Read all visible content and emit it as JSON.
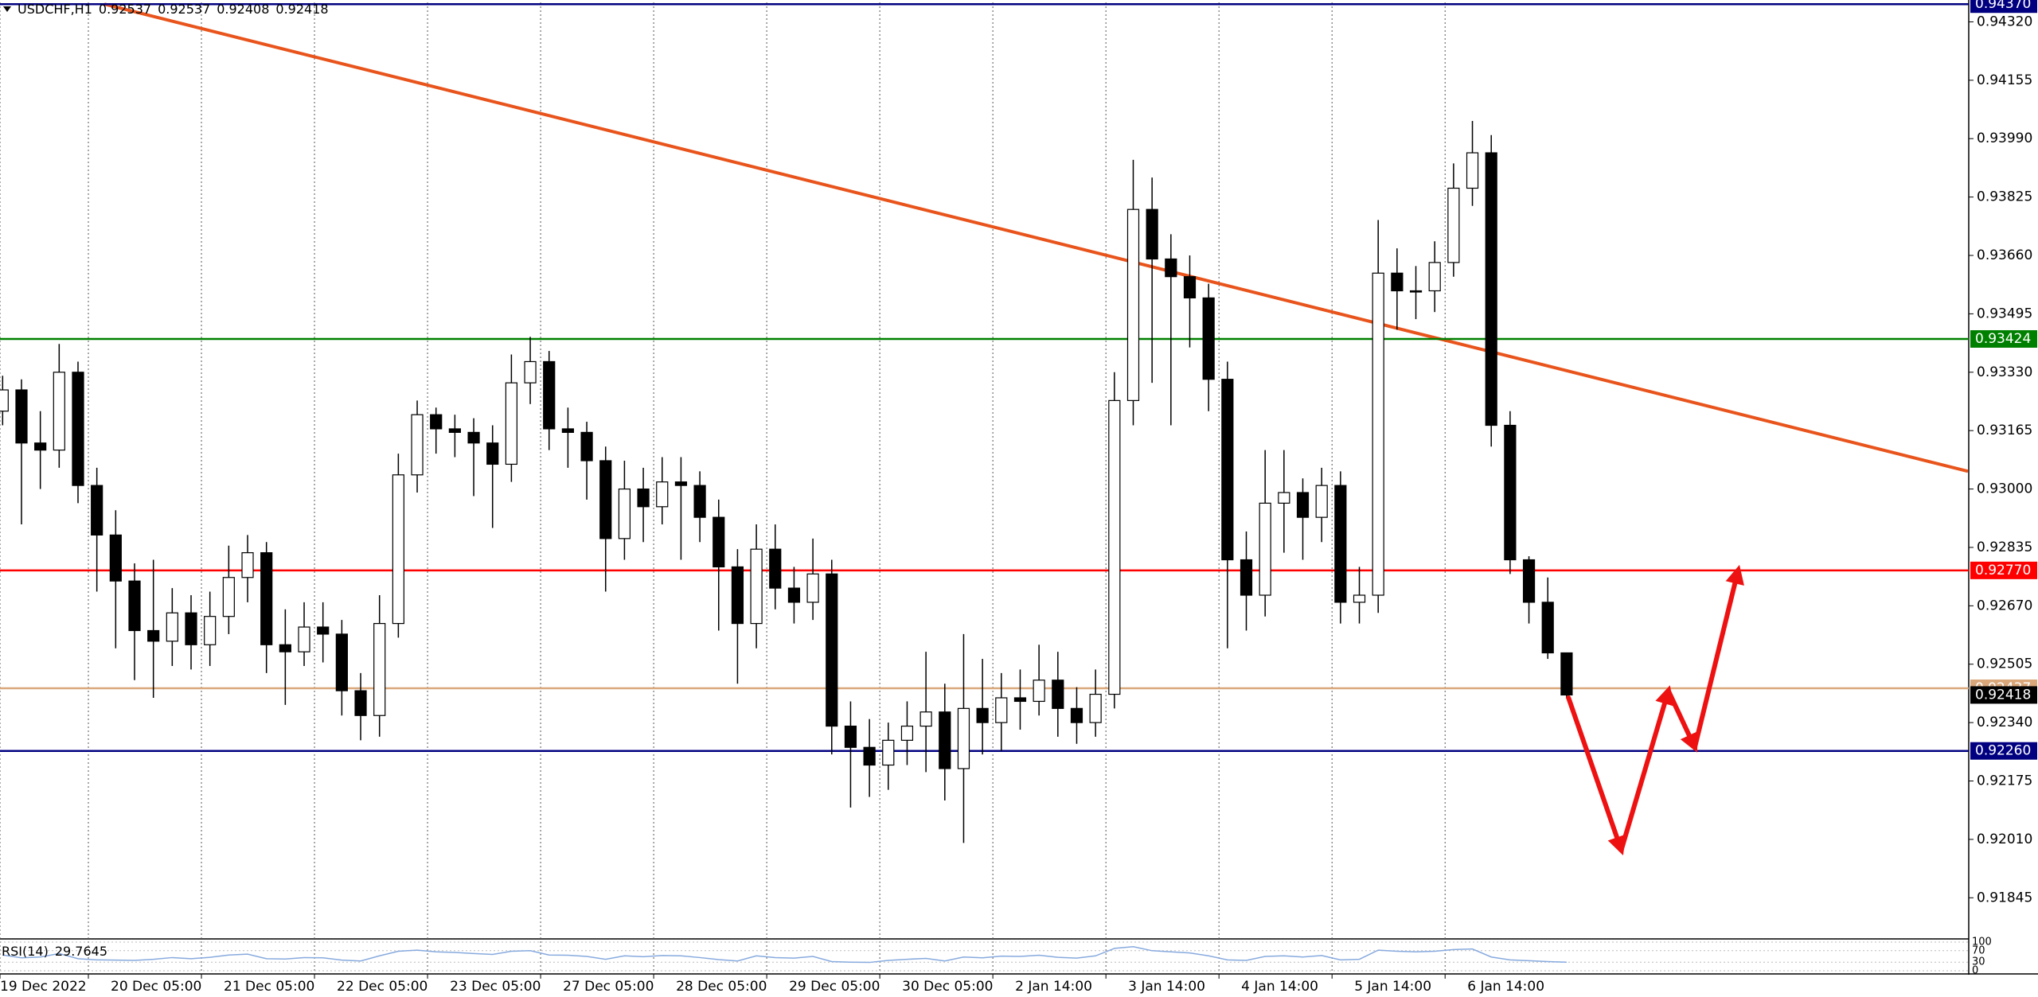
{
  "chart_data": {
    "type": "candlestick",
    "symbol": "USDCHF,H1",
    "open": [
      0.9322,
      0.9328,
      0.9313,
      0.9311,
      0.9333,
      0.9301,
      0.9287,
      0.9274,
      0.926,
      0.9257,
      0.9265,
      0.9256,
      0.9264,
      0.9275,
      0.9282,
      0.9256,
      0.9254,
      0.9261,
      0.9259,
      0.9243,
      0.9236,
      0.9262,
      0.9304,
      0.9321,
      0.9317,
      0.9316,
      0.9313,
      0.9307,
      0.933,
      0.9336,
      0.9317,
      0.9316,
      0.9308,
      0.9286,
      0.93,
      0.9295,
      0.9302,
      0.9301,
      0.9292,
      0.9278,
      0.9262,
      0.9283,
      0.9272,
      0.9268,
      0.9276,
      0.9233,
      0.9227,
      0.9222,
      0.9229,
      0.9233,
      0.9237,
      0.9221,
      0.9238,
      0.9234,
      0.9241,
      0.924,
      0.9246,
      0.9238,
      0.9234,
      0.9242,
      0.9325,
      0.9379,
      0.9365,
      0.936,
      0.9354,
      0.9331,
      0.928,
      0.927,
      0.9296,
      0.9299,
      0.9292,
      0.9301,
      0.9268,
      0.927,
      0.9361,
      0.9356,
      0.9356,
      0.9364,
      0.9385,
      0.9395,
      0.9318,
      0.928,
      0.9268,
      0.92537
    ],
    "high": [
      0.9332,
      0.9331,
      0.9322,
      0.9341,
      0.9336,
      0.9306,
      0.9294,
      0.9279,
      0.928,
      0.9272,
      0.927,
      0.9271,
      0.9284,
      0.9287,
      0.9285,
      0.9266,
      0.9268,
      0.9268,
      0.9263,
      0.9248,
      0.927,
      0.931,
      0.9325,
      0.9323,
      0.9321,
      0.932,
      0.9318,
      0.9338,
      0.9343,
      0.9339,
      0.9323,
      0.9319,
      0.9312,
      0.9308,
      0.9306,
      0.9309,
      0.9309,
      0.9305,
      0.9297,
      0.9283,
      0.929,
      0.929,
      0.9278,
      0.9286,
      0.928,
      0.924,
      0.9235,
      0.9234,
      0.924,
      0.9254,
      0.9245,
      0.9259,
      0.9252,
      0.9248,
      0.9249,
      0.9256,
      0.9254,
      0.9244,
      0.9249,
      0.9333,
      0.9393,
      0.9388,
      0.9372,
      0.9366,
      0.9358,
      0.9336,
      0.9288,
      0.9311,
      0.9311,
      0.9303,
      0.9306,
      0.9305,
      0.9278,
      0.9376,
      0.9368,
      0.9363,
      0.937,
      0.9392,
      0.9404,
      0.94,
      0.9322,
      0.9281,
      0.9275,
      0.92537
    ],
    "low": [
      0.9318,
      0.929,
      0.93,
      0.9306,
      0.9296,
      0.9271,
      0.9255,
      0.9246,
      0.9241,
      0.925,
      0.9249,
      0.925,
      0.9259,
      0.9268,
      0.9248,
      0.9239,
      0.925,
      0.9251,
      0.9236,
      0.9229,
      0.923,
      0.9258,
      0.9299,
      0.931,
      0.9309,
      0.9298,
      0.9289,
      0.9302,
      0.9324,
      0.9311,
      0.9306,
      0.9297,
      0.9271,
      0.928,
      0.9285,
      0.929,
      0.928,
      0.9285,
      0.926,
      0.9245,
      0.9255,
      0.9266,
      0.9262,
      0.9263,
      0.9225,
      0.921,
      0.9213,
      0.9215,
      0.9222,
      0.922,
      0.9212,
      0.92,
      0.9225,
      0.9226,
      0.9232,
      0.9236,
      0.923,
      0.9228,
      0.923,
      0.9238,
      0.9318,
      0.933,
      0.9318,
      0.934,
      0.9322,
      0.9255,
      0.926,
      0.9264,
      0.9282,
      0.928,
      0.9285,
      0.9262,
      0.9262,
      0.9265,
      0.9345,
      0.9348,
      0.935,
      0.936,
      0.938,
      0.9312,
      0.9276,
      0.9262,
      0.9252,
      0.92408
    ],
    "close": [
      0.9328,
      0.9313,
      0.9311,
      0.9333,
      0.9301,
      0.9287,
      0.9274,
      0.926,
      0.9257,
      0.9265,
      0.9256,
      0.9264,
      0.9275,
      0.9282,
      0.9256,
      0.9254,
      0.9261,
      0.9259,
      0.9243,
      0.9236,
      0.9262,
      0.9304,
      0.9321,
      0.9317,
      0.9316,
      0.9313,
      0.9307,
      0.933,
      0.9336,
      0.9317,
      0.9316,
      0.9308,
      0.9286,
      0.93,
      0.9295,
      0.9302,
      0.9301,
      0.9292,
      0.9278,
      0.9262,
      0.9283,
      0.9272,
      0.9268,
      0.9276,
      0.9233,
      0.9227,
      0.9222,
      0.9229,
      0.9233,
      0.9237,
      0.9221,
      0.9238,
      0.9234,
      0.9241,
      0.924,
      0.9246,
      0.9238,
      0.9234,
      0.9242,
      0.9325,
      0.9379,
      0.9365,
      0.936,
      0.9354,
      0.9331,
      0.928,
      0.927,
      0.9296,
      0.9299,
      0.9292,
      0.9301,
      0.9268,
      0.927,
      0.9361,
      0.9356,
      0.9356,
      0.9364,
      0.9385,
      0.9395,
      0.9318,
      0.928,
      0.9268,
      0.92537,
      0.92418
    ],
    "up_color": "#ffffff",
    "down_color": "#000000",
    "xlim": [
      -0.14,
      104.34
    ],
    "xticks": [
      {
        "value": -0.14,
        "label": "19 Dec 2022"
      },
      {
        "value": 4.55,
        "label": "20 Dec 05:00"
      },
      {
        "value": 10.55,
        "label": "21 Dec 05:00"
      },
      {
        "value": 16.55,
        "label": "22 Dec 05:00"
      },
      {
        "value": 22.55,
        "label": "23 Dec 05:00"
      },
      {
        "value": 28.55,
        "label": "27 Dec 05:00"
      },
      {
        "value": 34.55,
        "label": "28 Dec 05:00"
      },
      {
        "value": 40.55,
        "label": "29 Dec 05:00"
      },
      {
        "value": 46.55,
        "label": "30 Dec 05:00"
      },
      {
        "value": 52.55,
        "label": "2 Jan 14:00"
      },
      {
        "value": 58.55,
        "label": "3 Jan 14:00"
      },
      {
        "value": 64.55,
        "label": "4 Jan 14:00"
      },
      {
        "value": 70.55,
        "label": "5 Jan 14:00"
      },
      {
        "value": 76.55,
        "label": "6 Jan 14:00"
      }
    ],
    "ylim": [
      0.91731,
      0.94375
    ],
    "yticks": [
      {
        "value": 0.9432,
        "label": "0.94320"
      },
      0.94155,
      {
        "value": 0.9399,
        "label": "0.93990"
      },
      0.93825,
      {
        "value": 0.9366,
        "label": "0.93660"
      },
      0.93495,
      {
        "value": 0.9333,
        "label": "0.93330"
      },
      0.93165,
      {
        "value": 0.93,
        "label": "0.93000"
      },
      0.92835,
      {
        "value": 0.9267,
        "label": "0.92670"
      },
      0.92505,
      {
        "value": 0.9234,
        "label": "0.92340"
      },
      0.92175,
      {
        "value": 0.9201,
        "label": "0.92010"
      },
      0.91845
    ],
    "grid": true,
    "levels": [
      {
        "value": 0.9437,
        "label": "0.94370",
        "color": "#000080"
      },
      {
        "value": 0.93424,
        "color": "#008000"
      },
      {
        "value": 0.9277,
        "label": "0.92770",
        "color": "#ff0000"
      },
      {
        "value": 0.92437,
        "color": "#d9a77a"
      },
      {
        "value": 0.9226,
        "label": "0.92260",
        "color": "#000080"
      }
    ],
    "trendline": {
      "x": [
        5.4,
        104.3
      ],
      "y": [
        0.9437,
        0.9305
      ],
      "color": "#e8541c"
    },
    "forecast": {
      "x": [
        83.1,
        85.9,
        88.4,
        89.8,
        92.1
      ],
      "y": [
        0.9241,
        0.9198,
        0.9243,
        0.9227,
        0.9277
      ],
      "color": "#ee1111"
    },
    "rsi": {
      "name": "RSI(14)",
      "color": "#87aade",
      "ylim": [
        0,
        100
      ],
      "yticks": [
        100,
        70,
        30,
        0
      ],
      "values": [
        55,
        45,
        48,
        60,
        42,
        38,
        37,
        36,
        40,
        46,
        42,
        47,
        55,
        58,
        42,
        41,
        46,
        45,
        37,
        34,
        52,
        68,
        72,
        66,
        64,
        60,
        57,
        68,
        70,
        55,
        54,
        50,
        40,
        52,
        49,
        53,
        52,
        46,
        39,
        34,
        52,
        46,
        44,
        50,
        32,
        30,
        29,
        36,
        40,
        43,
        34,
        48,
        45,
        51,
        50,
        54,
        47,
        44,
        52,
        78,
        84,
        70,
        66,
        62,
        52,
        38,
        36,
        50,
        52,
        48,
        53,
        38,
        40,
        72,
        68,
        66,
        68,
        74,
        76,
        48,
        38,
        35,
        32,
        29.7645
      ]
    }
  }
}
